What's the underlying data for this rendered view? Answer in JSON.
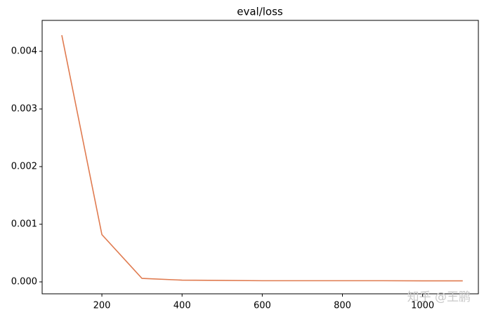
{
  "chart_data": {
    "type": "line",
    "title": "eval/loss",
    "x": [
      100,
      200,
      300,
      400,
      500,
      600,
      700,
      800,
      900,
      1000,
      1100
    ],
    "series": [
      {
        "name": "eval/loss",
        "color": "#e07b50",
        "values": [
          0.00428,
          0.00082,
          6e-05,
          3e-05,
          2.5e-05,
          2e-05,
          2e-05,
          2e-05,
          2e-05,
          1.8e-05,
          1.8e-05
        ]
      }
    ],
    "xlim": [
      51,
      1139
    ],
    "xticks": [
      200,
      400,
      600,
      800,
      1000
    ],
    "ylim": [
      -0.000207,
      0.004537
    ],
    "yticks": [
      {
        "value": 0,
        "label": "0.000"
      },
      {
        "value": 0.001,
        "label": "0.001"
      },
      {
        "value": 0.002,
        "label": "0.002"
      },
      {
        "value": 0.003,
        "label": "0.003"
      },
      {
        "value": 0.004,
        "label": "0.004"
      }
    ],
    "watermark": "知乎 @王鹏"
  }
}
